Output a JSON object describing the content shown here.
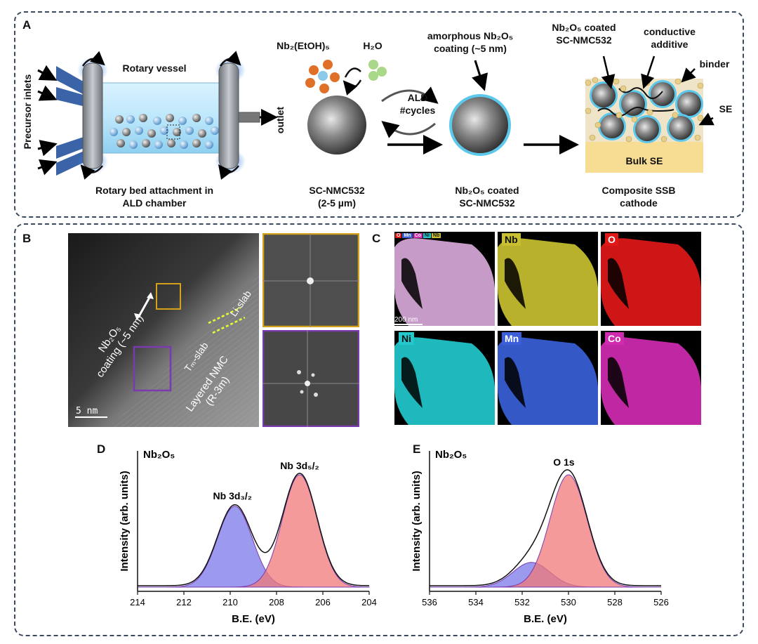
{
  "panelA": {
    "label": "A",
    "precursor_inlets": "Precursor inlets",
    "rotary_vessel": "Rotary vessel",
    "outlet": "outlet",
    "rotary_bed": [
      "Rotary bed attachment in",
      "ALD chamber"
    ],
    "nb_precursor": "Nb₂(EtOH)₅",
    "h2o": "H₂O",
    "ald": "ALD",
    "cycles": "#cycles",
    "sc_nmc": [
      "SC-NMC532",
      "(2-5 µm)"
    ],
    "amorphous": [
      "amorphous Nb₂O₅",
      "coating (~5 nm)"
    ],
    "coated": [
      "Nb₂O₅ coated",
      "SC-NMC532"
    ],
    "coated_top": [
      "Nb₂O₅ coated",
      "SC-NMC532"
    ],
    "conductive": [
      "conductive",
      "additive"
    ],
    "binder": "binder",
    "se": "SE",
    "bulk_se": "Bulk SE",
    "composite": [
      "Composite SSB",
      "cathode"
    ]
  },
  "panelB": {
    "label": "B",
    "coating": [
      "Nb₂O₅",
      "coating (~5 nm)"
    ],
    "li_slab": "Li-slab",
    "tm_slab": "Tₘ-slab",
    "layered": [
      "Layered NMC",
      "(R-3m)"
    ],
    "scale": "5 nm"
  },
  "panelC": {
    "label": "C",
    "scale": "200 nm",
    "maps": [
      {
        "tag": "",
        "color": "#d8a8d8"
      },
      {
        "tag": "Nb",
        "color": "#c8c030"
      },
      {
        "tag": "O",
        "color": "#e01818"
      },
      {
        "tag": "Ni",
        "color": "#22c8cc"
      },
      {
        "tag": "Mn",
        "color": "#3a5fd8"
      },
      {
        "tag": "Co",
        "color": "#d02ab0"
      }
    ],
    "merge_legend": [
      "O",
      "Mn",
      "Co",
      "Ni",
      "Nb"
    ]
  },
  "panelD": {
    "label": "D",
    "species": "Nb₂O₅",
    "peak1": "Nb 3d₃/₂",
    "peak2": "Nb 3d₅/₂",
    "xlabel": "B.E. (eV)",
    "ylabel": "Intensity (arb. units)",
    "ticks": [
      "214",
      "212",
      "210",
      "208",
      "206",
      "204"
    ]
  },
  "panelE": {
    "label": "E",
    "species": "Nb₂O₅",
    "peak": "O 1s",
    "xlabel": "B.E. (eV)",
    "ylabel": "Intensity (arb. units)",
    "ticks": [
      "536",
      "534",
      "532",
      "530",
      "528",
      "526"
    ]
  },
  "chart_data": [
    {
      "type": "line",
      "title": "Nb₂O₅",
      "xlabel": "B.E. (eV)",
      "ylabel": "Intensity (arb. units)",
      "xlim": [
        214,
        204
      ],
      "series": [
        {
          "name": "Nb 3d₃/₂",
          "center": 209.8,
          "height": 0.72,
          "color": "#7a78e8"
        },
        {
          "name": "Nb 3d₅/₂",
          "center": 207.0,
          "height": 1.0,
          "color": "#f07878"
        }
      ]
    },
    {
      "type": "line",
      "title": "Nb₂O₅",
      "xlabel": "B.E. (eV)",
      "ylabel": "Intensity (arb. units)",
      "xlim": [
        536,
        526
      ],
      "series": [
        {
          "name": "",
          "center": 531.6,
          "height": 0.22,
          "color": "#7a78e8"
        },
        {
          "name": "O 1s",
          "center": 530.0,
          "height": 1.0,
          "color": "#f07878"
        }
      ]
    }
  ]
}
